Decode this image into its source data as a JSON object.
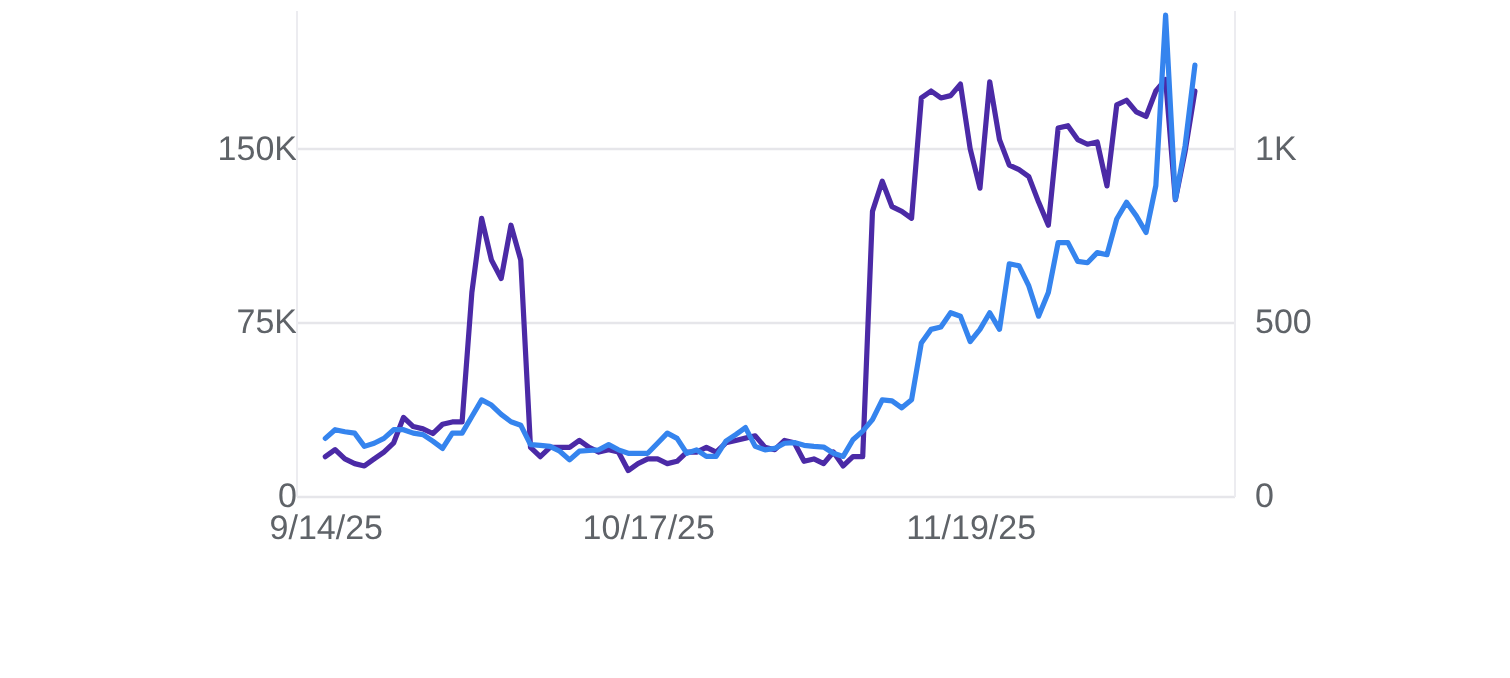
{
  "chart_data": {
    "type": "line",
    "x": [
      "2025-09-14",
      "2025-09-15",
      "2025-09-16",
      "2025-09-17",
      "2025-09-18",
      "2025-09-19",
      "2025-09-20",
      "2025-09-21",
      "2025-09-22",
      "2025-09-23",
      "2025-09-24",
      "2025-09-25",
      "2025-09-26",
      "2025-09-27",
      "2025-09-28",
      "2025-09-29",
      "2025-09-30",
      "2025-10-01",
      "2025-10-02",
      "2025-10-03",
      "2025-10-04",
      "2025-10-05",
      "2025-10-06",
      "2025-10-07",
      "2025-10-08",
      "2025-10-09",
      "2025-10-10",
      "2025-10-11",
      "2025-10-12",
      "2025-10-13",
      "2025-10-14",
      "2025-10-15",
      "2025-10-16",
      "2025-10-17",
      "2025-10-18",
      "2025-10-19",
      "2025-10-20",
      "2025-10-21",
      "2025-10-22",
      "2025-10-23",
      "2025-10-24",
      "2025-10-25",
      "2025-10-26",
      "2025-10-27",
      "2025-10-28",
      "2025-10-29",
      "2025-10-30",
      "2025-10-31",
      "2025-11-01",
      "2025-11-02",
      "2025-11-03",
      "2025-11-04",
      "2025-11-05",
      "2025-11-06",
      "2025-11-07",
      "2025-11-08",
      "2025-11-09",
      "2025-11-10",
      "2025-11-11",
      "2025-11-12",
      "2025-11-13",
      "2025-11-14",
      "2025-11-15",
      "2025-11-16",
      "2025-11-17",
      "2025-11-18",
      "2025-11-19",
      "2025-11-20",
      "2025-11-21",
      "2025-11-22",
      "2025-11-23",
      "2025-11-24",
      "2025-11-25",
      "2025-11-26",
      "2025-11-27",
      "2025-11-28",
      "2025-11-29",
      "2025-11-30",
      "2025-12-01",
      "2025-12-02",
      "2025-12-03",
      "2025-12-04",
      "2025-12-05",
      "2025-12-06",
      "2025-12-07",
      "2025-12-08",
      "2025-12-09",
      "2025-12-10",
      "2025-12-11",
      "2025-12-12"
    ],
    "series": [
      {
        "color": "#4b2aa6",
        "values": [
          17000,
          20000,
          16000,
          14000,
          13000,
          16000,
          19000,
          23000,
          34000,
          30000,
          29000,
          27000,
          31000,
          32000,
          32000,
          88000,
          120000,
          102000,
          94000,
          117000,
          102000,
          21000,
          17000,
          21000,
          21000,
          21000,
          24000,
          21000,
          19000,
          20000,
          19000,
          11000,
          14000,
          16000,
          16000,
          14000,
          15000,
          19000,
          19000,
          21000,
          19000,
          23000,
          24000,
          25000,
          26000,
          21000,
          20000,
          24000,
          23000,
          15000,
          16000,
          14000,
          19000,
          13000,
          17000,
          17000,
          123000,
          136000,
          125000,
          123000,
          120000,
          172000,
          175000,
          172000,
          173000,
          178000,
          150000,
          133000,
          179000,
          154000,
          143000,
          141000,
          138000,
          127000,
          117000,
          159000,
          160000,
          154000,
          152000,
          153000,
          134000,
          169000,
          171000,
          166000,
          164000,
          175000,
          180000,
          128000,
          149000,
          175000
        ]
      },
      {
        "color": "#3584ee",
        "axis": "y2",
        "values": [
          166,
          191,
          185,
          181,
          143,
          152,
          166,
          191,
          191,
          181,
          177,
          158,
          137,
          181,
          181,
          229,
          277,
          262,
          235,
          214,
          204,
          148,
          146,
          143,
          129,
          104,
          129,
          131,
          133,
          148,
          133,
          123,
          123,
          123,
          152,
          181,
          166,
          123,
          133,
          114,
          114,
          158,
          177,
          197,
          143,
          133,
          137,
          152,
          154,
          146,
          143,
          141,
          123,
          114,
          162,
          187,
          220,
          277,
          274,
          254,
          277,
          441,
          480,
          487,
          528,
          518,
          445,
          480,
          528,
          480,
          669,
          663,
          605,
          518,
          586,
          730,
          730,
          676,
          672,
          701,
          695,
          798,
          846,
          807,
          759,
          894,
          1385,
          855,
          1010,
          1241
        ]
      }
    ],
    "xlim": [
      "2025-09-11",
      "2025-12-16"
    ],
    "xticks": [
      {
        "value": "2025-09-14",
        "label": "9/14/25"
      },
      {
        "value": "2025-10-17",
        "label": "10/17/25"
      },
      {
        "value": "2025-11-19",
        "label": "11/19/25"
      }
    ],
    "ylim": [
      0,
      210000
    ],
    "yticks": [
      0,
      {
        "value": 75000,
        "label": "75K"
      },
      {
        "value": 150000,
        "label": "150K"
      }
    ],
    "y2lim": [
      0,
      1400
    ],
    "y2ticks": [
      0,
      500,
      {
        "value": 1000,
        "label": "1K"
      }
    ],
    "grid": "y"
  }
}
